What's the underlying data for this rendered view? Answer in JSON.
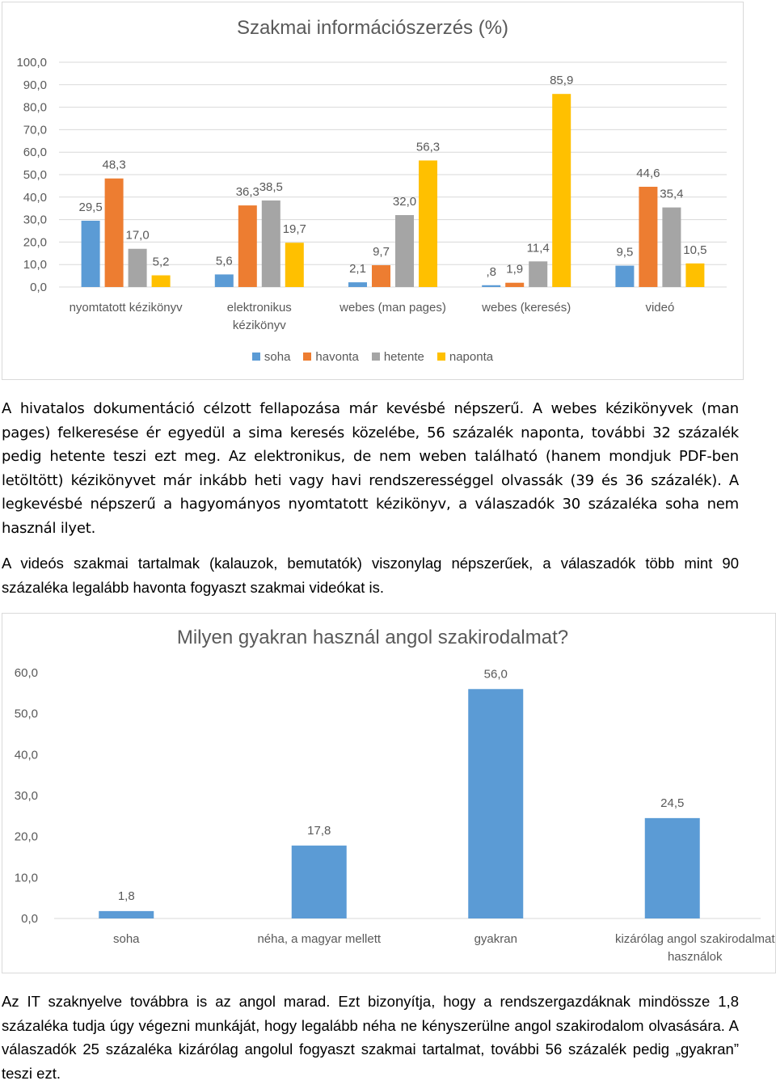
{
  "chart_data": [
    {
      "type": "bar",
      "title": "Szakmai információszerzés (%)",
      "categories": [
        "nyomtatott kézikönyv",
        "elektronikus kézikönyv",
        "webes (man pages)",
        "webes (keresés)",
        "videó"
      ],
      "series": [
        {
          "name": "soha",
          "values": [
            29.5,
            5.6,
            2.1,
            0.8,
            9.5
          ],
          "labels": [
            "29,5",
            "5,6",
            "2,1",
            ",8",
            "9,5"
          ],
          "color": "#5b9bd5"
        },
        {
          "name": "havonta",
          "values": [
            48.3,
            36.3,
            9.7,
            1.9,
            44.6
          ],
          "labels": [
            "48,3",
            "36,3",
            "9,7",
            "1,9",
            "44,6"
          ],
          "color": "#ed7d31"
        },
        {
          "name": "hetente",
          "values": [
            17.0,
            38.5,
            32.0,
            11.4,
            35.4
          ],
          "labels": [
            "17,0",
            "38,5",
            "32,0",
            "11,4",
            "35,4"
          ],
          "color": "#a5a5a5"
        },
        {
          "name": "naponta",
          "values": [
            5.2,
            19.7,
            56.3,
            85.9,
            10.5
          ],
          "labels": [
            "5,2",
            "19,7",
            "56,3",
            "85,9",
            "10,5"
          ],
          "color": "#ffc000"
        }
      ],
      "yticks": [
        "0,0",
        "10,0",
        "20,0",
        "30,0",
        "40,0",
        "50,0",
        "60,0",
        "70,0",
        "80,0",
        "90,0",
        "100,0"
      ],
      "ylim": [
        0,
        100
      ],
      "grid": true,
      "legend": "bottom"
    },
    {
      "type": "bar",
      "title": "Milyen gyakran használ angol szakirodalmat?",
      "categories": [
        "soha",
        "néha, a magyar mellett",
        "gyakran",
        "kizárólag angol szakirodalmat használok"
      ],
      "values": [
        1.8,
        17.8,
        56.0,
        24.5
      ],
      "labels": [
        "1,8",
        "17,8",
        "56,0",
        "24,5"
      ],
      "color": "#5b9bd5",
      "yticks": [
        "0,0",
        "10,0",
        "20,0",
        "30,0",
        "40,0",
        "50,0",
        "60,0"
      ],
      "ylim": [
        0,
        60
      ],
      "grid": false
    }
  ],
  "paragraphs": {
    "p1": "A hivatalos dokumentáció célzott fellapozása már kevésbé népszerű. A webes kézikönyvek (man pages) felkeresése ér egyedül a sima keresés közelébe, 56 százalék naponta, további 32 százalék pedig hetente teszi ezt meg. Az elektronikus, de nem weben található (hanem mondjuk PDF-ben letöltött) kézikönyvet már inkább heti vagy havi rendszerességgel olvassák (39 és 36 százalék). A legkevésbé népszerű a hagyományos nyomtatott kézikönyv, a válaszadók 30 százaléka soha nem használ ilyet.",
    "p2": "A videós szakmai tartalmak (kalauzok, bemutatók) viszonylag népszerűek, a válaszadók több mint 90 százaléka legalább havonta fogyaszt szakmai videókat is.",
    "p3": "Az IT szaknyelve továbbra is az angol marad. Ezt bizonyítja, hogy a rendszergazdáknak mindössze 1,8 százaléka tudja úgy végezni munkáját, hogy legalább néha ne kényszerülne angol szakirodalom olvasására. A válaszadók 25 százaléka kizárólag angolul fogyaszt szakmai tartalmat, további 56 százalék pedig „gyakran” teszi ezt."
  }
}
